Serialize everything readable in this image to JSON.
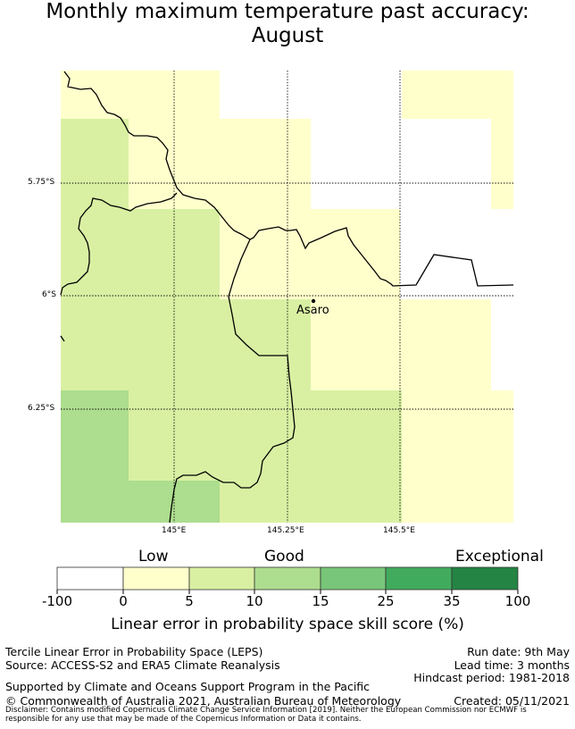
{
  "title": {
    "line1": "Monthly maximum temperature past accuracy:",
    "line2": "August"
  },
  "map": {
    "location_label": "Asaro",
    "lat_ticks": [
      "5.75°S",
      "6°S",
      "6.25°S"
    ],
    "lon_ticks": [
      "145°E",
      "145.25°E",
      "145.5°E"
    ],
    "category_colors": {
      "below_0": "#ffffff",
      "0_5": "#ffffcc",
      "5_10": "#d9f0a3",
      "10_15": "#addd8e",
      "15_25": "#78c679",
      "25_35": "#41ab5d",
      "35_100": "#238443"
    },
    "coastline_color": "#000000"
  },
  "colorbar": {
    "words": [
      "Low",
      "Good",
      "Exceptional"
    ],
    "ticks": [
      "-100",
      "0",
      "5",
      "10",
      "15",
      "25",
      "35",
      "100"
    ],
    "colors": [
      "#ffffff",
      "#ffffcc",
      "#d9f0a3",
      "#addd8e",
      "#78c679",
      "#41ab5d",
      "#238443"
    ],
    "label": "Linear error in probability space skill score (%)"
  },
  "footer": {
    "method": "Tercile Linear Error in Probability Space (LEPS)",
    "source": "Source: ACCESS-S2 and ERA5 Climate Reanalysis",
    "support": "Supported by Climate and Oceans Support Program in the Pacific",
    "copyright": "© Commonwealth of Australia 2021, Australian Bureau of Meteorology",
    "run_date": "Run date: 9th May",
    "lead_time": "Lead time: 3 months",
    "hindcast": "Hindcast period: 1981-2018",
    "created": "Created: 05/11/2021",
    "disclaimer": "Disclaimer: Contains modified Copernicus Climate Change Service Information [2019]. Neither the European Commission nor ECMWF is responsible for any use that may be made of the Copernicus Information or Data it contains."
  }
}
